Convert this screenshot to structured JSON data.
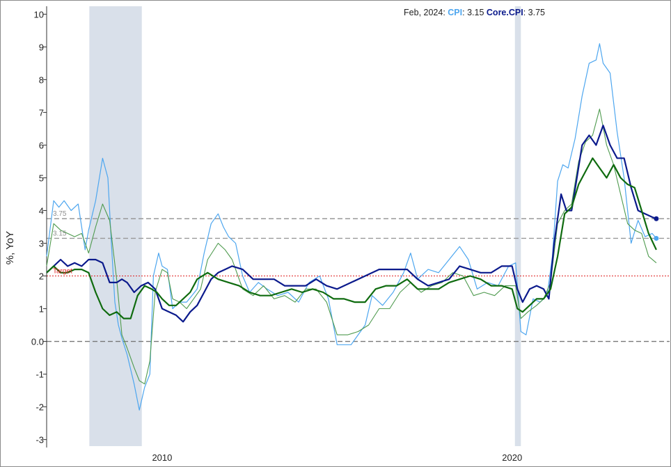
{
  "chart_data": {
    "type": "line",
    "ylabel": "%, YoY",
    "ylim": [
      -3.2,
      10.2
    ],
    "y_ticks": [
      "10",
      "9",
      "8",
      "7",
      "6",
      "5",
      "4",
      "3",
      "2",
      "1",
      "0.0",
      "-1",
      "-2",
      "-3"
    ],
    "x_ticks": [
      {
        "label": "2010",
        "x": 2010.0
      },
      {
        "label": "2020",
        "x": 2020.0
      }
    ],
    "xlim": [
      2006.7,
      2024.5
    ],
    "header": {
      "date": "Feb, 2024",
      "cpi_label": "CPI",
      "cpi_value": "3.15",
      "core_label": "Core.CPI",
      "core_value": "3.75"
    },
    "colors": {
      "cpi": "#4da6ef",
      "core": "#0b1a8c",
      "green_thin": "#4e9a4e",
      "green_thick": "#0f6b0f",
      "target": "#e02020",
      "recession": "#d9e0ea",
      "ref": "#999999"
    },
    "recessions": [
      [
        2007.92,
        2009.42
      ],
      [
        2020.08,
        2020.25
      ]
    ],
    "reference_lines": [
      {
        "label": "3.75",
        "y": 3.75
      },
      {
        "label": "3.15",
        "y": 3.15
      }
    ],
    "target": {
      "label": "Target",
      "y": 2.0
    },
    "zero_line": 0,
    "end_markers": [
      {
        "series": "Core.CPI",
        "x": 2024.12,
        "y": 3.75
      },
      {
        "series": "CPI",
        "x": 2024.12,
        "y": 3.15
      }
    ],
    "series": [
      {
        "name": "CPI",
        "role": "cpi",
        "x": [
          2006.7,
          2006.9,
          2007.05,
          2007.2,
          2007.4,
          2007.6,
          2007.8,
          2007.9,
          2008.1,
          2008.3,
          2008.45,
          2008.55,
          2008.65,
          2008.75,
          2008.85,
          2009.0,
          2009.2,
          2009.35,
          2009.5,
          2009.65,
          2009.75,
          2009.9,
          2010.0,
          2010.15,
          2010.3,
          2010.5,
          2010.7,
          2010.85,
          2011.0,
          2011.2,
          2011.4,
          2011.6,
          2011.75,
          2011.9,
          2012.1,
          2012.3,
          2012.5,
          2012.75,
          2013.0,
          2013.3,
          2013.6,
          2013.9,
          2014.2,
          2014.5,
          2014.75,
          2015.0,
          2015.2,
          2015.4,
          2015.6,
          2015.8,
          2016.0,
          2016.3,
          2016.6,
          2016.9,
          2017.1,
          2017.3,
          2017.6,
          2017.9,
          2018.2,
          2018.5,
          2018.75,
          2019.0,
          2019.3,
          2019.6,
          2019.9,
          2020.1,
          2020.25,
          2020.4,
          2020.6,
          2020.8,
          2021.0,
          2021.15,
          2021.3,
          2021.45,
          2021.6,
          2021.8,
          2022.0,
          2022.2,
          2022.4,
          2022.5,
          2022.6,
          2022.8,
          2023.0,
          2023.2,
          2023.4,
          2023.6,
          2023.8,
          2024.0,
          2024.12
        ],
        "values": [
          2.6,
          4.3,
          4.1,
          4.3,
          4.0,
          4.2,
          2.8,
          3.4,
          4.3,
          5.6,
          5.0,
          3.0,
          1.2,
          0.5,
          0.1,
          -0.4,
          -1.3,
          -2.1,
          -1.4,
          -1.0,
          2.0,
          2.7,
          2.3,
          2.2,
          1.0,
          1.2,
          1.2,
          1.4,
          1.6,
          2.7,
          3.6,
          3.9,
          3.5,
          3.2,
          3.0,
          2.0,
          1.5,
          1.8,
          1.6,
          1.4,
          1.5,
          1.2,
          1.8,
          2.0,
          1.3,
          -0.1,
          -0.1,
          -0.1,
          0.2,
          0.5,
          1.4,
          1.1,
          1.5,
          2.1,
          2.7,
          1.9,
          2.2,
          2.1,
          2.5,
          2.9,
          2.5,
          1.6,
          1.8,
          1.7,
          2.3,
          2.4,
          0.3,
          0.2,
          1.3,
          1.2,
          1.4,
          2.6,
          4.9,
          5.4,
          5.3,
          6.2,
          7.5,
          8.5,
          8.6,
          9.1,
          8.5,
          8.2,
          6.4,
          5.0,
          3.0,
          3.7,
          3.2,
          3.3,
          3.15
        ]
      },
      {
        "name": "Core.CPI",
        "role": "core",
        "x": [
          2006.7,
          2006.9,
          2007.1,
          2007.3,
          2007.5,
          2007.7,
          2007.9,
          2008.1,
          2008.3,
          2008.5,
          2008.7,
          2008.85,
          2009.0,
          2009.2,
          2009.4,
          2009.6,
          2009.8,
          2010.0,
          2010.2,
          2010.4,
          2010.6,
          2010.8,
          2011.0,
          2011.2,
          2011.4,
          2011.6,
          2011.8,
          2012.0,
          2012.3,
          2012.6,
          2012.9,
          2013.2,
          2013.5,
          2013.8,
          2014.1,
          2014.4,
          2014.7,
          2015.0,
          2015.4,
          2015.8,
          2016.2,
          2016.6,
          2017.0,
          2017.3,
          2017.6,
          2017.9,
          2018.2,
          2018.5,
          2018.8,
          2019.1,
          2019.4,
          2019.7,
          2020.0,
          2020.15,
          2020.3,
          2020.5,
          2020.7,
          2020.9,
          2021.05,
          2021.2,
          2021.4,
          2021.55,
          2021.7,
          2021.85,
          2022.0,
          2022.2,
          2022.4,
          2022.6,
          2022.8,
          2023.0,
          2023.2,
          2023.4,
          2023.6,
          2023.8,
          2024.0,
          2024.12
        ],
        "values": [
          2.1,
          2.3,
          2.5,
          2.3,
          2.4,
          2.3,
          2.5,
          2.5,
          2.4,
          1.8,
          1.8,
          1.9,
          1.8,
          1.5,
          1.7,
          1.8,
          1.6,
          1.0,
          0.9,
          0.8,
          0.6,
          0.9,
          1.1,
          1.5,
          1.9,
          2.1,
          2.2,
          2.3,
          2.2,
          1.9,
          1.9,
          1.9,
          1.7,
          1.7,
          1.7,
          1.9,
          1.7,
          1.6,
          1.8,
          2.0,
          2.2,
          2.2,
          2.2,
          1.9,
          1.7,
          1.8,
          1.9,
          2.3,
          2.2,
          2.1,
          2.1,
          2.3,
          2.3,
          1.6,
          1.2,
          1.6,
          1.7,
          1.6,
          1.3,
          3.0,
          4.5,
          4.0,
          4.0,
          5.0,
          6.0,
          6.3,
          6.0,
          6.6,
          6.0,
          5.6,
          5.6,
          4.7,
          4.0,
          3.9,
          3.8,
          3.75
        ]
      },
      {
        "name": "",
        "role": "green_thin",
        "x": [
          2006.7,
          2006.9,
          2007.1,
          2007.3,
          2007.5,
          2007.7,
          2007.9,
          2008.1,
          2008.3,
          2008.5,
          2008.7,
          2008.85,
          2009.0,
          2009.2,
          2009.35,
          2009.5,
          2009.65,
          2009.8,
          2010.0,
          2010.15,
          2010.3,
          2010.5,
          2010.7,
          2010.9,
          2011.1,
          2011.3,
          2011.6,
          2011.8,
          2012.0,
          2012.3,
          2012.6,
          2012.9,
          2013.2,
          2013.5,
          2013.8,
          2014.1,
          2014.4,
          2014.7,
          2015.0,
          2015.3,
          2015.6,
          2015.9,
          2016.2,
          2016.5,
          2016.8,
          2017.1,
          2017.4,
          2017.7,
          2018.0,
          2018.3,
          2018.6,
          2018.9,
          2019.2,
          2019.5,
          2019.8,
          2020.1,
          2020.25,
          2020.45,
          2020.7,
          2020.9,
          2021.1,
          2021.3,
          2021.5,
          2021.7,
          2021.9,
          2022.1,
          2022.3,
          2022.5,
          2022.7,
          2022.9,
          2023.1,
          2023.3,
          2023.5,
          2023.7,
          2023.9,
          2024.12
        ],
        "values": [
          2.3,
          3.6,
          3.4,
          3.3,
          3.2,
          3.3,
          2.7,
          3.5,
          4.2,
          3.7,
          1.9,
          0.2,
          -0.2,
          -0.8,
          -1.2,
          -1.3,
          -0.6,
          1.5,
          2.2,
          2.1,
          1.3,
          1.2,
          1.0,
          1.3,
          1.6,
          2.5,
          3.0,
          2.8,
          2.5,
          1.6,
          1.4,
          1.7,
          1.3,
          1.4,
          1.2,
          1.6,
          1.6,
          1.2,
          0.2,
          0.2,
          0.3,
          0.5,
          1.0,
          1.0,
          1.5,
          1.8,
          1.5,
          1.7,
          1.8,
          2.1,
          2.0,
          1.4,
          1.5,
          1.4,
          1.7,
          1.7,
          0.7,
          0.9,
          1.1,
          1.3,
          1.8,
          3.6,
          4.0,
          4.2,
          5.5,
          6.1,
          6.3,
          7.1,
          6.0,
          5.4,
          4.5,
          3.6,
          3.4,
          3.3,
          2.6,
          2.4
        ]
      },
      {
        "name": "",
        "role": "green_thick",
        "x": [
          2006.7,
          2006.9,
          2007.1,
          2007.3,
          2007.5,
          2007.7,
          2007.9,
          2008.1,
          2008.3,
          2008.5,
          2008.7,
          2008.9,
          2009.1,
          2009.3,
          2009.5,
          2009.7,
          2009.85,
          2010.0,
          2010.2,
          2010.4,
          2010.6,
          2010.8,
          2011.0,
          2011.3,
          2011.6,
          2011.9,
          2012.2,
          2012.5,
          2012.8,
          2013.1,
          2013.4,
          2013.7,
          2014.0,
          2014.3,
          2014.6,
          2014.9,
          2015.2,
          2015.5,
          2015.8,
          2016.1,
          2016.4,
          2016.7,
          2017.0,
          2017.3,
          2017.6,
          2017.9,
          2018.2,
          2018.5,
          2018.8,
          2019.1,
          2019.4,
          2019.7,
          2020.0,
          2020.15,
          2020.3,
          2020.5,
          2020.7,
          2020.9,
          2021.1,
          2021.3,
          2021.5,
          2021.7,
          2021.9,
          2022.1,
          2022.3,
          2022.5,
          2022.7,
          2022.9,
          2023.1,
          2023.3,
          2023.5,
          2023.7,
          2023.9,
          2024.12
        ],
        "values": [
          2.1,
          2.3,
          2.1,
          2.1,
          2.2,
          2.2,
          2.1,
          1.5,
          1.0,
          0.8,
          0.9,
          0.7,
          0.7,
          1.4,
          1.7,
          1.6,
          1.5,
          1.3,
          1.1,
          1.1,
          1.3,
          1.5,
          1.9,
          2.1,
          1.9,
          1.8,
          1.7,
          1.5,
          1.4,
          1.4,
          1.5,
          1.6,
          1.5,
          1.6,
          1.5,
          1.3,
          1.3,
          1.2,
          1.2,
          1.6,
          1.7,
          1.7,
          1.9,
          1.6,
          1.6,
          1.6,
          1.8,
          1.9,
          2.0,
          1.9,
          1.7,
          1.7,
          1.6,
          1.0,
          0.9,
          1.1,
          1.3,
          1.3,
          1.6,
          2.6,
          3.9,
          4.1,
          4.8,
          5.2,
          5.6,
          5.3,
          5.0,
          5.4,
          5.0,
          4.8,
          4.7,
          4.0,
          3.3,
          2.8
        ]
      }
    ]
  }
}
